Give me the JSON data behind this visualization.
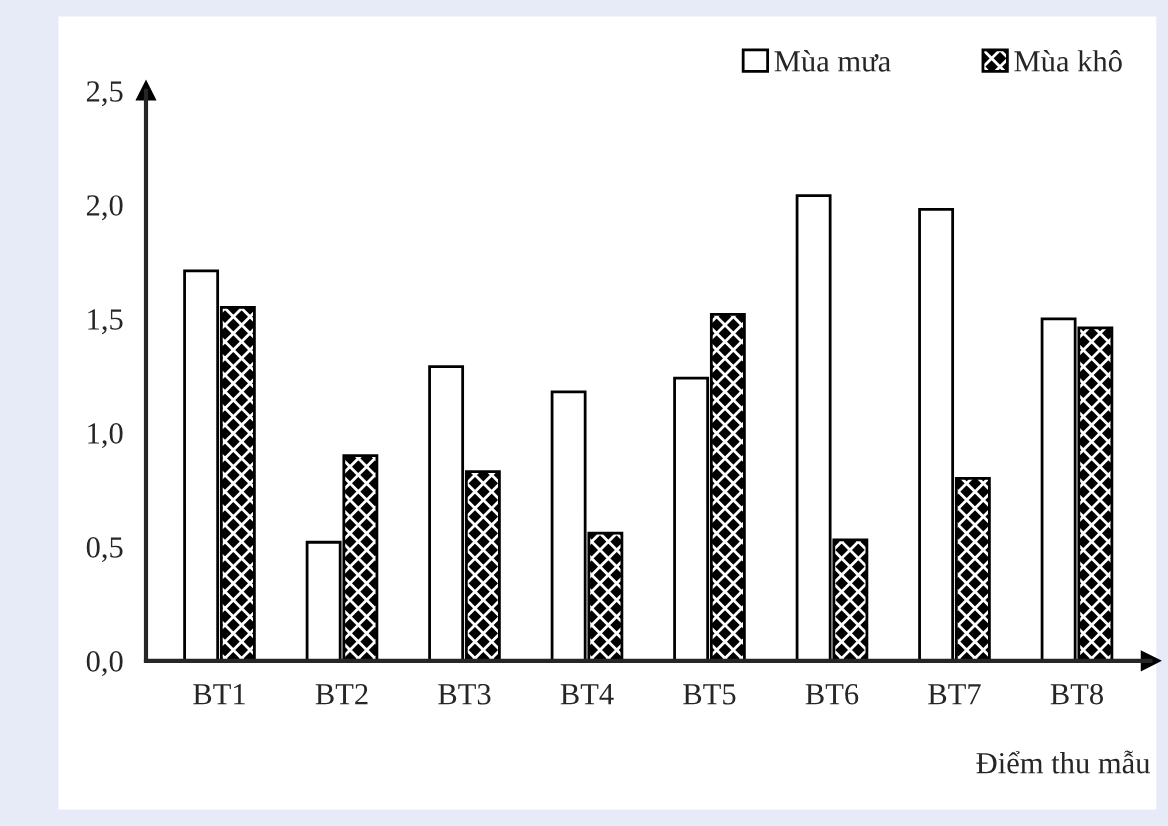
{
  "chart_data": {
    "type": "bar",
    "categories": [
      "BT1",
      "BT2",
      "BT3",
      "BT4",
      "BT5",
      "BT6",
      "BT7",
      "BT8"
    ],
    "series": [
      {
        "name": "Mùa mưa",
        "color": "#ffffff",
        "values": [
          1.71,
          0.52,
          1.29,
          1.18,
          1.24,
          2.04,
          1.98,
          1.5
        ]
      },
      {
        "name": "Mùa khô",
        "color": "#000000",
        "values": [
          1.55,
          0.9,
          0.83,
          0.56,
          1.52,
          0.53,
          0.8,
          1.46
        ]
      }
    ],
    "xlabel": "Điểm thu mẫu",
    "ylim": [
      0,
      2.5
    ],
    "yticks": [
      {
        "value": 0,
        "label": "0,0"
      },
      {
        "value": 0.5,
        "label": "0,5"
      },
      {
        "value": 1,
        "label": "1,0"
      },
      {
        "value": 1.5,
        "label": "1,5"
      },
      {
        "value": 2,
        "label": "2,0"
      },
      {
        "value": 2.5,
        "label": "2,5"
      }
    ],
    "legend": "top right",
    "grid": false
  }
}
